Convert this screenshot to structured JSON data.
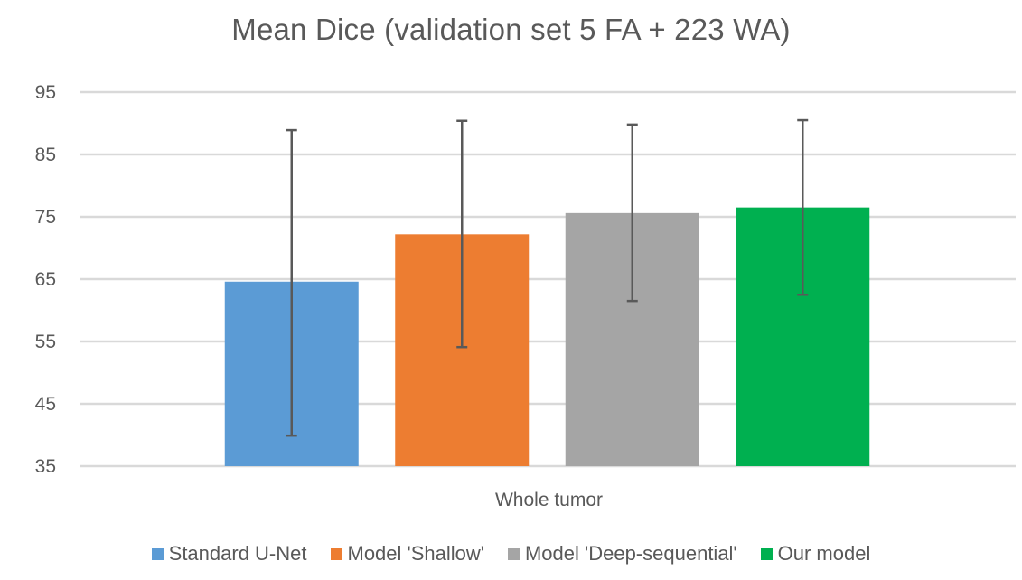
{
  "chart_data": {
    "type": "bar",
    "title": "Mean Dice (validation set 5 FA + 223 WA)",
    "xlabel": "",
    "ylabel": "",
    "categories": [
      "Whole tumor"
    ],
    "ylim": [
      35,
      95
    ],
    "yticks": [
      35,
      45,
      55,
      65,
      75,
      85,
      95
    ],
    "ytick_labels": [
      "35",
      "45",
      "55",
      "65",
      "75",
      "85",
      "95"
    ],
    "grid": true,
    "legend_position": "bottom",
    "error_bars": true,
    "series": [
      {
        "name": "Standard U-Net",
        "color": "#5B9BD5",
        "values": [
          64.6
        ],
        "error_low": [
          39.9
        ],
        "error_high": [
          88.9
        ]
      },
      {
        "name": "Model 'Shallow'",
        "color": "#ED7D31",
        "values": [
          72.2
        ],
        "error_low": [
          54.1
        ],
        "error_high": [
          90.4
        ]
      },
      {
        "name": "Model 'Deep-sequential'",
        "color": "#A5A5A5",
        "values": [
          75.6
        ],
        "error_low": [
          61.5
        ],
        "error_high": [
          89.8
        ]
      },
      {
        "name": "Our model",
        "color": "#00B050",
        "values": [
          76.5
        ],
        "error_low": [
          62.5
        ],
        "error_high": [
          90.5
        ]
      }
    ]
  }
}
